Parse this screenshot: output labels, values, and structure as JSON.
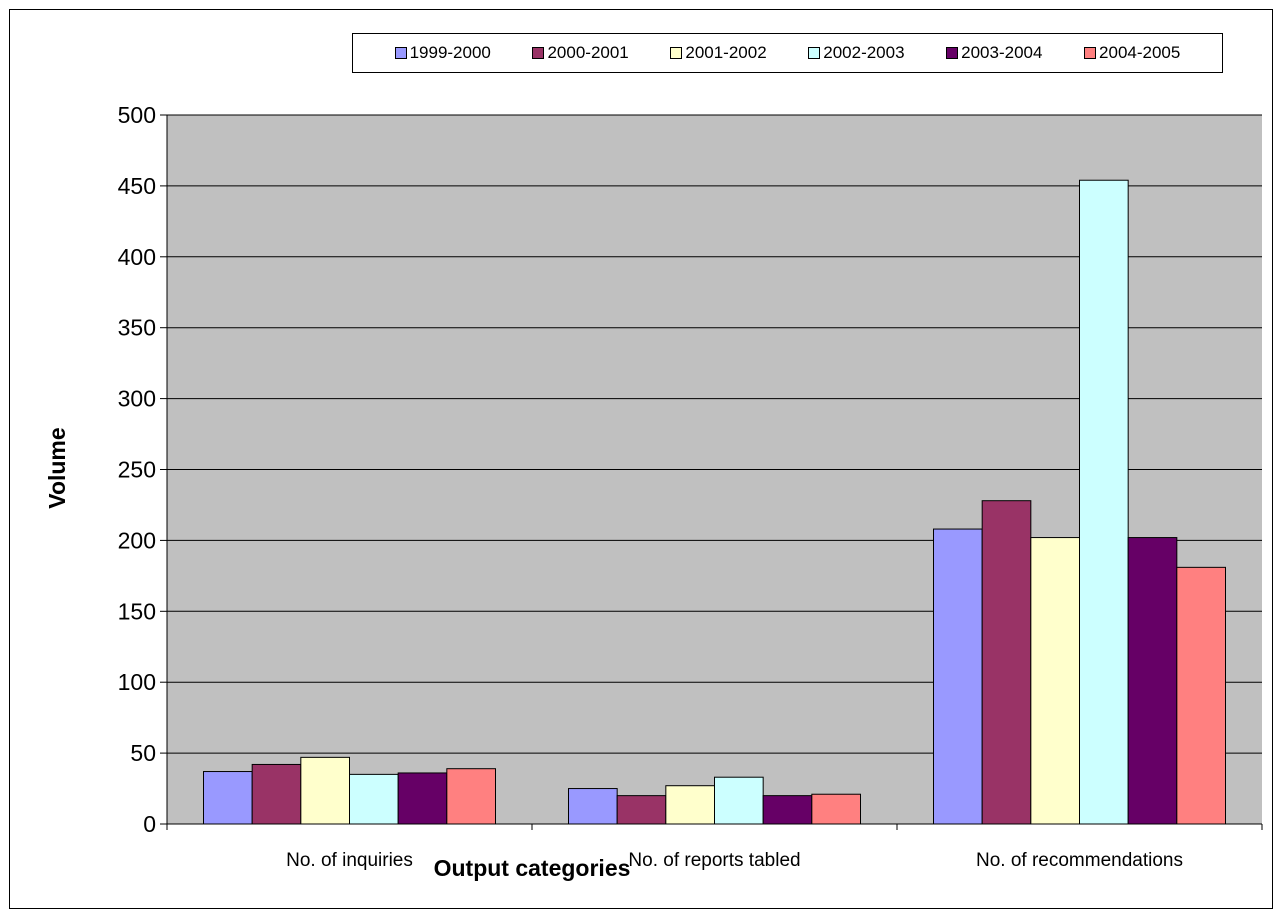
{
  "chart_data": {
    "type": "bar",
    "title": "",
    "xlabel": "Output categories",
    "ylabel": "Volume",
    "categories": [
      "No. of inquiries",
      "No. of reports tabled",
      "No. of recommendations"
    ],
    "ylim": [
      0,
      500
    ],
    "yticks": [
      "0",
      "50",
      "100",
      "150",
      "200",
      "250",
      "300",
      "350",
      "400",
      "450",
      "500"
    ],
    "grid": true,
    "legend_position": "top",
    "plot_background": "#c0c0c0",
    "series": [
      {
        "name": "1999-2000",
        "color": "#9999ff",
        "values": [
          37,
          25,
          208
        ]
      },
      {
        "name": "2000-2001",
        "color": "#993366",
        "values": [
          42,
          20,
          228
        ]
      },
      {
        "name": "2001-2002",
        "color": "#ffffcc",
        "values": [
          47,
          27,
          202
        ]
      },
      {
        "name": "2002-2003",
        "color": "#ccffff",
        "values": [
          35,
          33,
          454
        ]
      },
      {
        "name": "2003-2004",
        "color": "#660066",
        "values": [
          36,
          20,
          202
        ]
      },
      {
        "name": "2004-2005",
        "color": "#ff8080",
        "values": [
          39,
          21,
          181
        ]
      }
    ]
  }
}
